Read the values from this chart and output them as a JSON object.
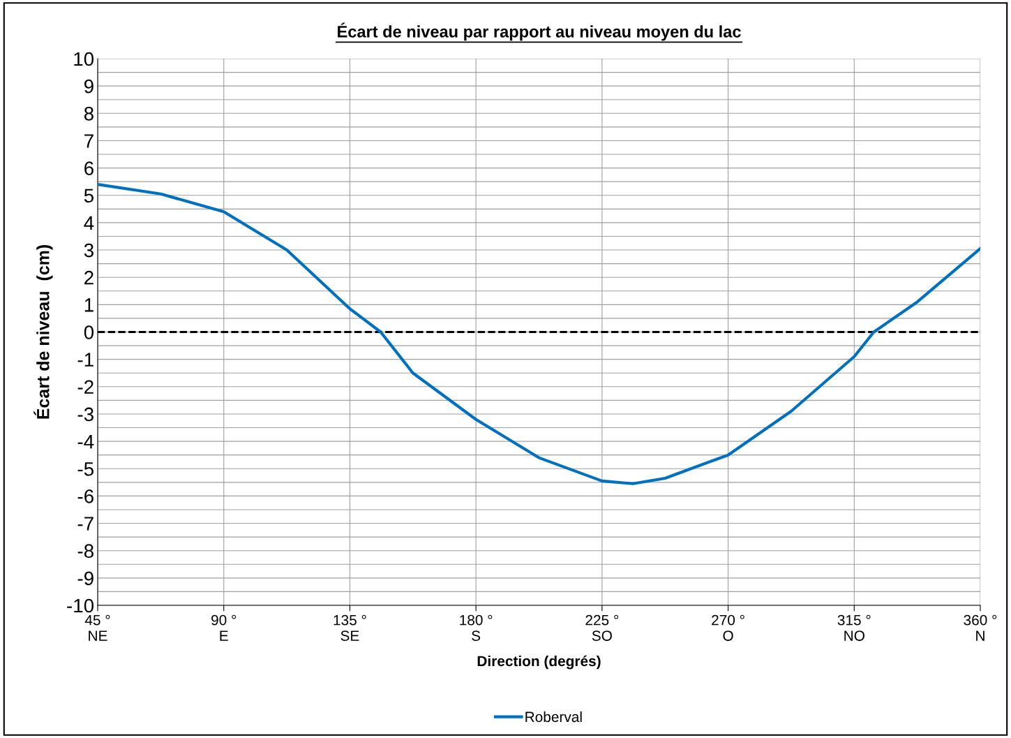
{
  "chart_data": {
    "type": "line",
    "title": "Écart de niveau par rapport au niveau moyen du lac",
    "xlabel": "Direction (degrés)",
    "ylabel": "Écart de niveau  (cm)",
    "x": [
      45,
      67.5,
      90,
      112.5,
      135,
      146,
      157.5,
      180,
      202.5,
      225,
      236,
      247.5,
      270,
      292.5,
      315,
      322,
      337.5,
      360
    ],
    "series": [
      {
        "name": "Roberval",
        "color": "#0070c0",
        "values": [
          5.4,
          5.05,
          4.4,
          3.0,
          0.85,
          0,
          -1.5,
          -3.2,
          -4.6,
          -5.45,
          -5.55,
          -5.35,
          -4.5,
          -2.9,
          -0.9,
          0,
          1.1,
          3.05
        ]
      }
    ],
    "xlim": [
      45,
      360
    ],
    "xticks": [
      {
        "value": 45,
        "label": "45 °\nNE"
      },
      {
        "value": 90,
        "label": "90 °\nE"
      },
      {
        "value": 135,
        "label": "135 °\nSE"
      },
      {
        "value": 180,
        "label": "180 °\nS"
      },
      {
        "value": 225,
        "label": "225 °\nSO"
      },
      {
        "value": 270,
        "label": "270 °\nO"
      },
      {
        "value": 315,
        "label": "315 °\nNO"
      },
      {
        "value": 360,
        "label": "360 °\nN"
      }
    ],
    "ylim": [
      -10,
      10
    ],
    "yticks": [
      -10,
      {
        "value": -9.5,
        "label": null
      },
      -9,
      {
        "value": -8.5,
        "label": null
      },
      -8,
      {
        "value": -7.5,
        "label": null
      },
      -7,
      {
        "value": -6.5,
        "label": null
      },
      -6,
      {
        "value": -5.5,
        "label": null
      },
      -5,
      {
        "value": -4.5,
        "label": null
      },
      -4,
      {
        "value": -3.5,
        "label": null
      },
      -3,
      {
        "value": -2.5,
        "label": null
      },
      -2,
      {
        "value": -1.5,
        "label": null
      },
      -1,
      {
        "value": -0.5,
        "label": null
      },
      0,
      {
        "value": 0.5,
        "label": null
      },
      1,
      {
        "value": 1.5,
        "label": null
      },
      2,
      {
        "value": 2.5,
        "label": null
      },
      3,
      {
        "value": 3.5,
        "label": null
      },
      4,
      {
        "value": 4.5,
        "label": null
      },
      5,
      {
        "value": 5.5,
        "label": null
      },
      6,
      {
        "value": 6.5,
        "label": null
      },
      7,
      {
        "value": 7.5,
        "label": null
      },
      8,
      {
        "value": 8.5,
        "label": null
      },
      9,
      {
        "value": 9.5,
        "label": null
      },
      10
    ],
    "ref_lines": [
      {
        "axis": "y",
        "value": 0,
        "label": null,
        "color": "#000000",
        "line_style": "dashed"
      }
    ],
    "grid": true,
    "legend": "bottom",
    "marker": "none",
    "line_style": "solid"
  }
}
